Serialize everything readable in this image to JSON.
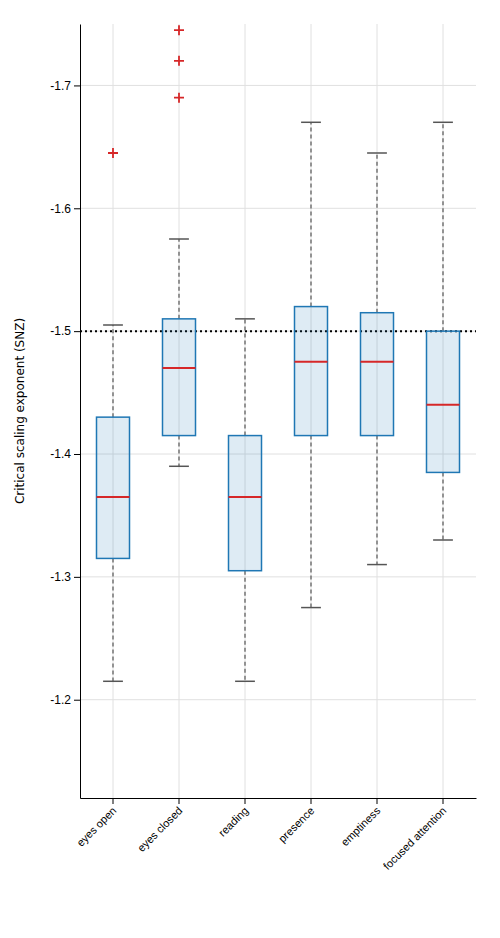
{
  "chart_data": {
    "type": "box",
    "ylabel": "Critical scaling exponent (SNZ)",
    "categories": [
      "eyes open",
      "eyes closed",
      "reading",
      "presence",
      "emptiness",
      "focused attention"
    ],
    "boxes": [
      {
        "whislo": -1.505,
        "q1": -1.43,
        "med": -1.365,
        "q3": -1.315,
        "whishi": -1.215,
        "fliers": [
          -1.645
        ]
      },
      {
        "whislo": -1.575,
        "q1": -1.51,
        "med": -1.47,
        "q3": -1.415,
        "whishi": -1.39,
        "fliers": [
          -1.69,
          -1.72,
          -1.745
        ]
      },
      {
        "whislo": -1.51,
        "q1": -1.415,
        "med": -1.365,
        "q3": -1.305,
        "whishi": -1.215,
        "fliers": []
      },
      {
        "whislo": -1.67,
        "q1": -1.52,
        "med": -1.475,
        "q3": -1.415,
        "whishi": -1.275,
        "fliers": []
      },
      {
        "whislo": -1.645,
        "q1": -1.515,
        "med": -1.475,
        "q3": -1.415,
        "whishi": -1.31,
        "fliers": []
      },
      {
        "whislo": -1.67,
        "q1": -1.5,
        "med": -1.44,
        "q3": -1.385,
        "whishi": -1.33,
        "fliers": []
      }
    ],
    "reference_line": -1.5,
    "ylim": [
      -1.12,
      -1.75
    ],
    "yticks": [
      -1.7,
      -1.6,
      -1.5,
      -1.4,
      -1.3,
      -1.2
    ],
    "grid": true
  }
}
